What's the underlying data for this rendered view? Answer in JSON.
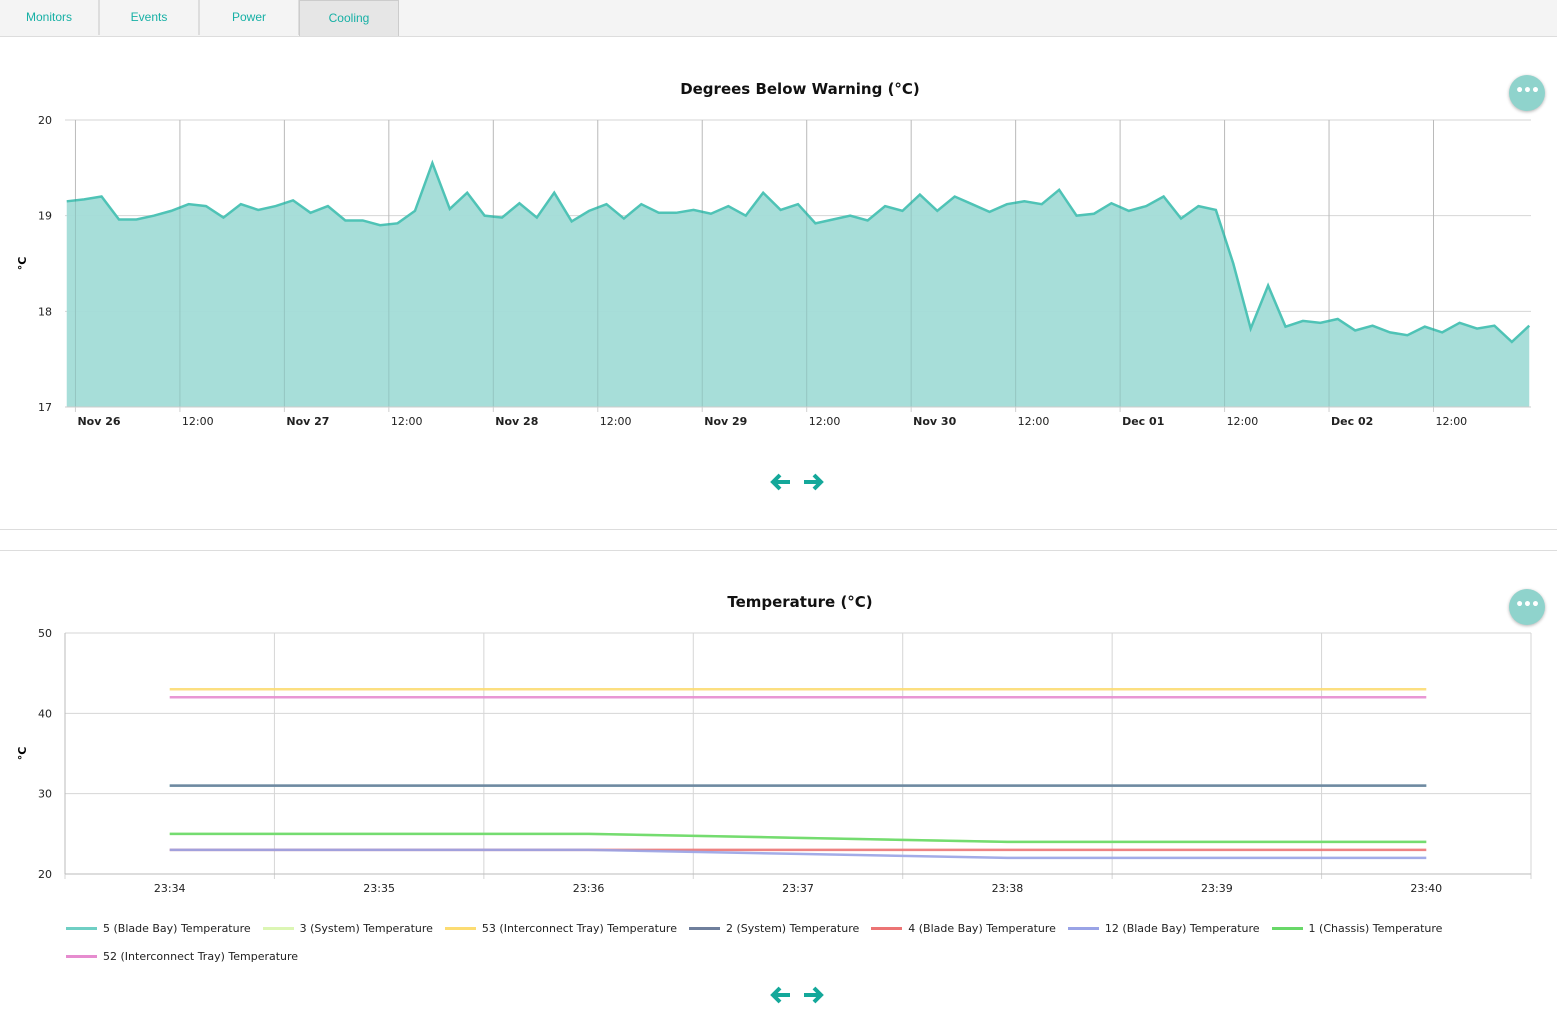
{
  "tabs": [
    {
      "label": "Monitors",
      "active": false
    },
    {
      "label": "Events",
      "active": false
    },
    {
      "label": "Power",
      "active": false
    },
    {
      "label": "Cooling",
      "active": true
    }
  ],
  "colors": {
    "accent": "#16b0a5",
    "area_fill": "#a2dcd7",
    "area_line": "#4fc3b6",
    "menu_button": "#8fd3cc",
    "arrow": "#14a89a"
  },
  "icons": {
    "menu": "ellipsis-icon",
    "prev": "arrow-left-icon",
    "next": "arrow-right-icon"
  },
  "chart_data": [
    {
      "type": "area",
      "title": "Degrees Below Warning (°C)",
      "ylabel": "°C",
      "ylim": [
        17,
        20
      ],
      "yticks": [
        "17",
        "18",
        "19",
        "20"
      ],
      "grid": true,
      "xticks": [
        {
          "at": "11-26 00:00",
          "label": "Nov 26",
          "major": true
        },
        {
          "at": "11-26 12:00",
          "label": "12:00",
          "major": false
        },
        {
          "at": "11-27 00:00",
          "label": "Nov 27",
          "major": true
        },
        {
          "at": "11-27 12:00",
          "label": "12:00",
          "major": false
        },
        {
          "at": "11-28 00:00",
          "label": "Nov 28",
          "major": true
        },
        {
          "at": "11-28 12:00",
          "label": "12:00",
          "major": false
        },
        {
          "at": "11-29 00:00",
          "label": "Nov 29",
          "major": true
        },
        {
          "at": "11-29 12:00",
          "label": "12:00",
          "major": false
        },
        {
          "at": "11-30 00:00",
          "label": "Nov 30",
          "major": true
        },
        {
          "at": "11-30 12:00",
          "label": "12:00",
          "major": false
        },
        {
          "at": "12-01 00:00",
          "label": "Dec 01",
          "major": true
        },
        {
          "at": "12-01 12:00",
          "label": "12:00",
          "major": false
        },
        {
          "at": "12-02 00:00",
          "label": "Dec 02",
          "major": true
        },
        {
          "at": "12-02 12:00",
          "label": "12:00",
          "major": false
        }
      ],
      "x": [
        "11-25 23:00",
        "11-26 01:00",
        "11-26 03:00",
        "11-26 05:00",
        "11-26 07:00",
        "11-26 09:00",
        "11-26 11:00",
        "11-26 13:00",
        "11-26 15:00",
        "11-26 17:00",
        "11-26 19:00",
        "11-26 21:00",
        "11-26 23:00",
        "11-27 01:00",
        "11-27 03:00",
        "11-27 05:00",
        "11-27 07:00",
        "11-27 09:00",
        "11-27 11:00",
        "11-27 13:00",
        "11-27 15:00",
        "11-27 17:00",
        "11-27 19:00",
        "11-27 21:00",
        "11-27 23:00",
        "11-28 01:00",
        "11-28 03:00",
        "11-28 05:00",
        "11-28 07:00",
        "11-28 09:00",
        "11-28 11:00",
        "11-28 13:00",
        "11-28 15:00",
        "11-28 17:00",
        "11-28 19:00",
        "11-28 21:00",
        "11-28 23:00",
        "11-29 01:00",
        "11-29 03:00",
        "11-29 05:00",
        "11-29 07:00",
        "11-29 09:00",
        "11-29 11:00",
        "11-29 13:00",
        "11-29 15:00",
        "11-29 17:00",
        "11-29 19:00",
        "11-29 21:00",
        "11-29 23:00",
        "11-30 01:00",
        "11-30 03:00",
        "11-30 05:00",
        "11-30 07:00",
        "11-30 09:00",
        "11-30 11:00",
        "11-30 13:00",
        "11-30 15:00",
        "11-30 17:00",
        "11-30 19:00",
        "11-30 21:00",
        "11-30 23:00",
        "12-01 01:00",
        "12-01 03:00",
        "12-01 05:00",
        "12-01 07:00",
        "12-01 09:00",
        "12-01 11:00",
        "12-01 13:00",
        "12-01 15:00",
        "12-01 17:00",
        "12-01 19:00",
        "12-01 21:00",
        "12-01 23:00",
        "12-02 01:00",
        "12-02 03:00",
        "12-02 05:00",
        "12-02 07:00",
        "12-02 09:00",
        "12-02 11:00",
        "12-02 13:00",
        "12-02 15:00",
        "12-02 17:00",
        "12-02 19:00",
        "12-02 21:00",
        "12-02 23:00"
      ],
      "values": [
        19.15,
        19.17,
        19.2,
        18.96,
        18.96,
        19.0,
        19.05,
        19.12,
        19.1,
        18.98,
        19.12,
        19.06,
        19.1,
        19.16,
        19.03,
        19.1,
        18.95,
        18.95,
        18.9,
        18.92,
        19.05,
        19.55,
        19.07,
        19.24,
        19.0,
        18.98,
        19.13,
        18.98,
        19.24,
        18.94,
        19.05,
        19.12,
        18.97,
        19.12,
        19.03,
        19.03,
        19.06,
        19.02,
        19.1,
        19.0,
        19.24,
        19.06,
        19.12,
        18.92,
        18.96,
        19.0,
        18.95,
        19.1,
        19.05,
        19.22,
        19.05,
        19.2,
        19.12,
        19.04,
        19.12,
        19.15,
        19.12,
        19.27,
        19.0,
        19.02,
        19.13,
        19.05,
        19.1,
        19.2,
        18.97,
        19.1,
        19.06,
        18.5,
        17.82,
        18.27,
        17.84,
        17.9,
        17.88,
        17.92,
        17.8,
        17.85,
        17.78,
        17.75,
        17.84,
        17.78,
        17.88,
        17.82,
        17.85,
        17.68,
        17.85
      ]
    },
    {
      "type": "line",
      "title": "Temperature (°C)",
      "ylabel": "°C",
      "ylim": [
        20,
        50
      ],
      "yticks": [
        "20",
        "30",
        "40",
        "50"
      ],
      "grid": true,
      "legend": "bottom",
      "x": [
        "23:34",
        "23:35",
        "23:36",
        "23:37",
        "23:38",
        "23:39",
        "23:40"
      ],
      "series": [
        {
          "name": "5 (Blade Bay) Temperature",
          "color": "#6fcfc4",
          "values": [
            31,
            31,
            31,
            31,
            31,
            31,
            31
          ]
        },
        {
          "name": "3 (System) Temperature",
          "color": "#dcf6b4",
          "values": [
            25,
            25,
            25,
            24.5,
            24,
            24,
            24
          ]
        },
        {
          "name": "53 (Interconnect Tray) Temperature",
          "color": "#fcdc72",
          "values": [
            43,
            43,
            43,
            43,
            43,
            43,
            43
          ]
        },
        {
          "name": "2 (System) Temperature",
          "color": "#6f7f9c",
          "values": [
            31,
            31,
            31,
            31,
            31,
            31,
            31
          ]
        },
        {
          "name": "4 (Blade Bay) Temperature",
          "color": "#ec7474",
          "values": [
            23,
            23,
            23,
            23,
            23,
            23,
            23
          ]
        },
        {
          "name": "12 (Blade Bay) Temperature",
          "color": "#99a3e6",
          "values": [
            23,
            23,
            23,
            22.5,
            22,
            22,
            22
          ]
        },
        {
          "name": "1 (Chassis) Temperature",
          "color": "#68d868",
          "values": [
            25,
            25,
            25,
            24.5,
            24,
            24,
            24
          ]
        },
        {
          "name": "52 (Interconnect Tray) Temperature",
          "color": "#e68ccf",
          "values": [
            42,
            42,
            42,
            42,
            42,
            42,
            42
          ]
        }
      ]
    }
  ]
}
